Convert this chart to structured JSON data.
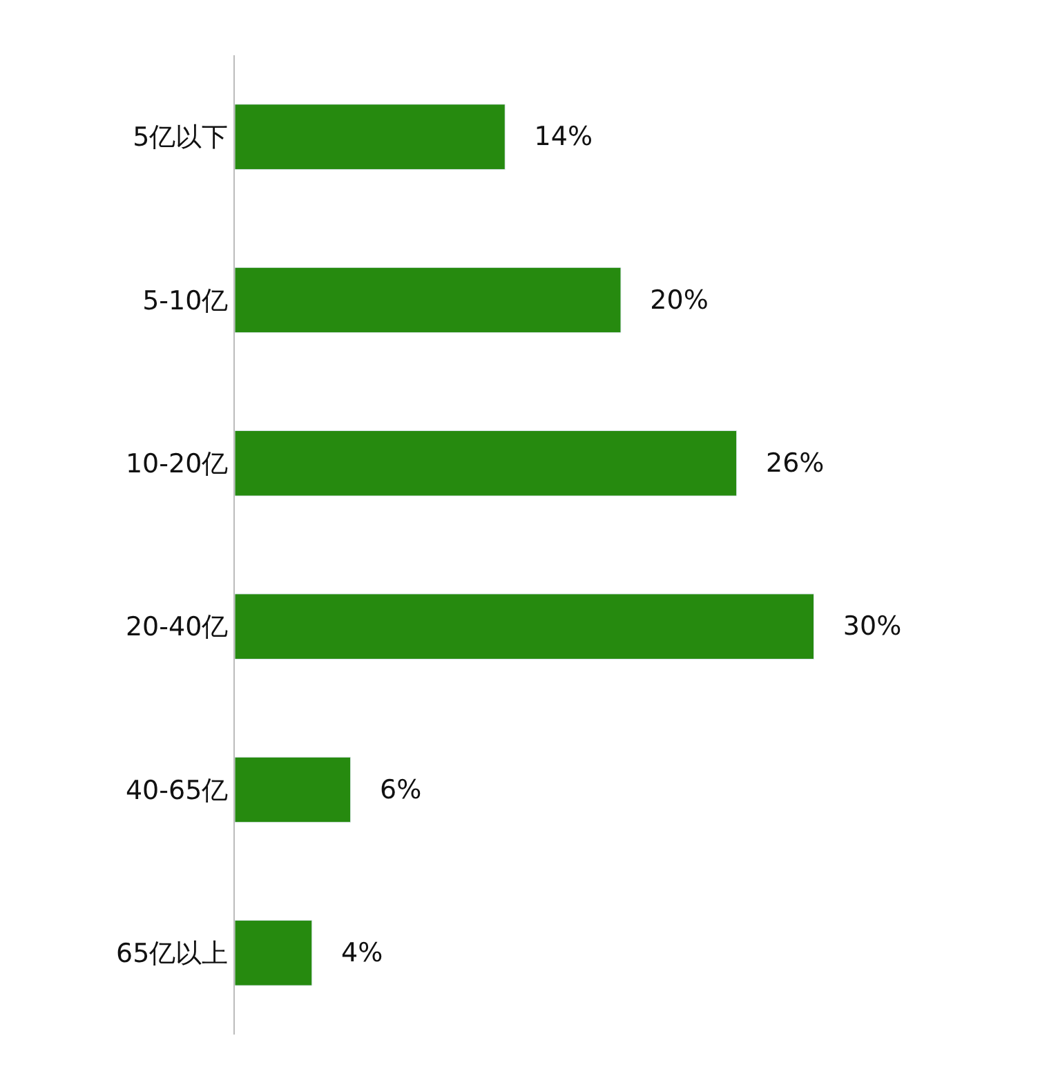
{
  "chart_data": {
    "type": "bar",
    "orientation": "horizontal",
    "categories": [
      "5亿以下",
      "5-10亿",
      "10-20亿",
      "20-40亿",
      "40-65亿",
      "65亿以上"
    ],
    "values": [
      14,
      20,
      26,
      30,
      6,
      4
    ],
    "value_labels": [
      "14%",
      "20%",
      "26%",
      "30%",
      "6%",
      "4%"
    ],
    "color": "#268a0f"
  }
}
